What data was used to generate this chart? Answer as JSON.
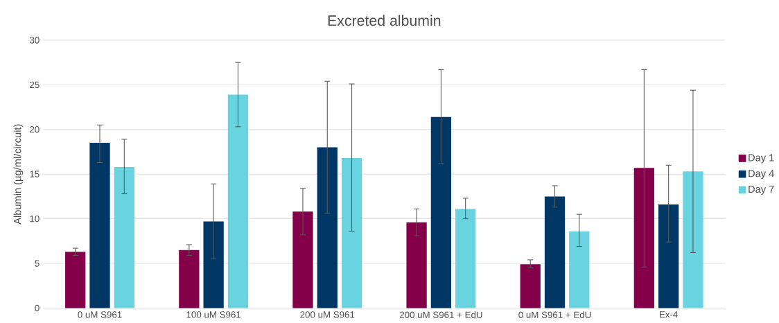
{
  "chart_data": {
    "type": "bar",
    "title": "Excreted albumin",
    "ylabel": "Albumin (µg/ml/circuit)",
    "categories": [
      "0 uM S961",
      "100 uM S961",
      "200 uM S961",
      "200 uM S961 + EdU",
      "0 uM S961 + EdU",
      "Ex-4"
    ],
    "series": [
      {
        "name": "Day 1",
        "color": "#840048",
        "values": [
          6.3,
          6.5,
          10.8,
          9.6,
          4.9,
          15.7
        ],
        "errors": [
          [
            5.9,
            6.7
          ],
          [
            5.9,
            7.1
          ],
          [
            8.2,
            13.4
          ],
          [
            8.1,
            11.1
          ],
          [
            4.5,
            5.4
          ],
          [
            4.6,
            26.7
          ]
        ]
      },
      {
        "name": "Day 4",
        "color": "#003764",
        "values": [
          18.5,
          9.7,
          18.0,
          21.4,
          12.5,
          11.6
        ],
        "errors": [
          [
            16.3,
            20.5
          ],
          [
            5.5,
            13.9
          ],
          [
            10.6,
            25.4
          ],
          [
            16.2,
            26.7
          ],
          [
            11.3,
            13.7
          ],
          [
            7.4,
            16.0
          ]
        ]
      },
      {
        "name": "Day 7",
        "color": "#69D3DF",
        "values": [
          15.8,
          23.9,
          16.8,
          11.1,
          8.6,
          15.3
        ],
        "errors": [
          [
            12.8,
            18.9
          ],
          [
            20.3,
            27.5
          ],
          [
            8.6,
            25.1
          ],
          [
            10.0,
            12.3
          ],
          [
            6.9,
            10.5
          ],
          [
            6.2,
            24.4
          ]
        ]
      }
    ],
    "ylim": [
      0,
      30
    ],
    "yticks": [
      0,
      5,
      10,
      15,
      20,
      25,
      30
    ],
    "grid": "y",
    "legend": "right"
  }
}
